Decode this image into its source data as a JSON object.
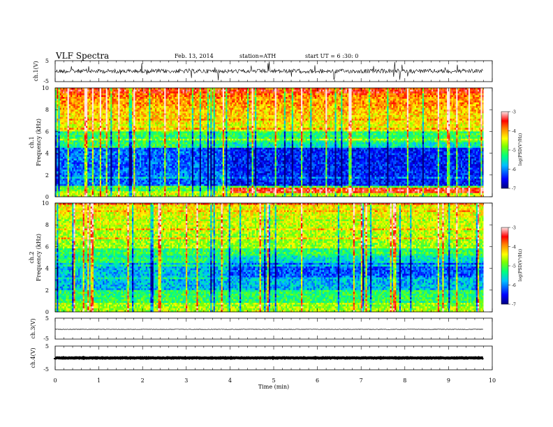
{
  "header": {
    "title": "VLF  Spectra",
    "date": "Feb. 13, 2014",
    "station": "station=ATH",
    "start_ut": "start  UT  =   6  :30: 0"
  },
  "chart_data": [
    {
      "id": "ch1-waveform",
      "type": "line",
      "ylabel": "ch.1(V)",
      "ylim": [
        -5,
        5
      ],
      "y_ticks": [
        "5",
        "-5"
      ],
      "xlim": [
        0,
        10
      ],
      "data_end_min": 9.8
    },
    {
      "id": "ch1-spectrogram",
      "type": "heatmap",
      "ylabel_channel": "ch.1",
      "ylabel": "Frequency (kHz)",
      "ylim": [
        0,
        10
      ],
      "y_ticks": [
        "0",
        "2",
        "4",
        "6",
        "8",
        "10"
      ],
      "xlim": [
        0,
        10
      ],
      "data_end_min": 9.8,
      "colorbar": {
        "label": "log(PSD(V²/Hz)",
        "range": [
          -7,
          -3
        ],
        "ticks": [
          "-3",
          "-4",
          "-5",
          "-6",
          "-7"
        ],
        "scale": "jet"
      }
    },
    {
      "id": "ch2-spectrogram",
      "type": "heatmap",
      "ylabel_channel": "ch.2",
      "ylabel": "Frequency (kHz)",
      "ylim": [
        0,
        10
      ],
      "y_ticks": [
        "0",
        "2",
        "4",
        "6",
        "8",
        "10"
      ],
      "xlim": [
        0,
        10
      ],
      "data_end_min": 9.8,
      "colorbar": {
        "label": "log(PSD(V²/Hz)",
        "range": [
          -7,
          -3
        ],
        "ticks": [
          "-3",
          "-4",
          "-5",
          "-6",
          "-7"
        ],
        "scale": "jet"
      }
    },
    {
      "id": "ch3-waveform",
      "type": "line",
      "ylabel": "ch.3(V)",
      "ylim": [
        -5,
        5
      ],
      "y_ticks": [
        "5",
        "-5"
      ],
      "xlim": [
        0,
        10
      ],
      "data_end_min": 9.8
    },
    {
      "id": "ch4-waveform",
      "type": "line",
      "ylabel": "ch.4(V)",
      "ylim": [
        -5,
        5
      ],
      "y_ticks": [
        "5",
        "-5"
      ],
      "xlim": [
        0,
        10
      ],
      "data_end_min": 9.8,
      "xlabel": "Time  (min)",
      "x_ticks": [
        "0",
        "1",
        "2",
        "3",
        "4",
        "5",
        "6",
        "7",
        "8",
        "9",
        "10"
      ]
    }
  ]
}
